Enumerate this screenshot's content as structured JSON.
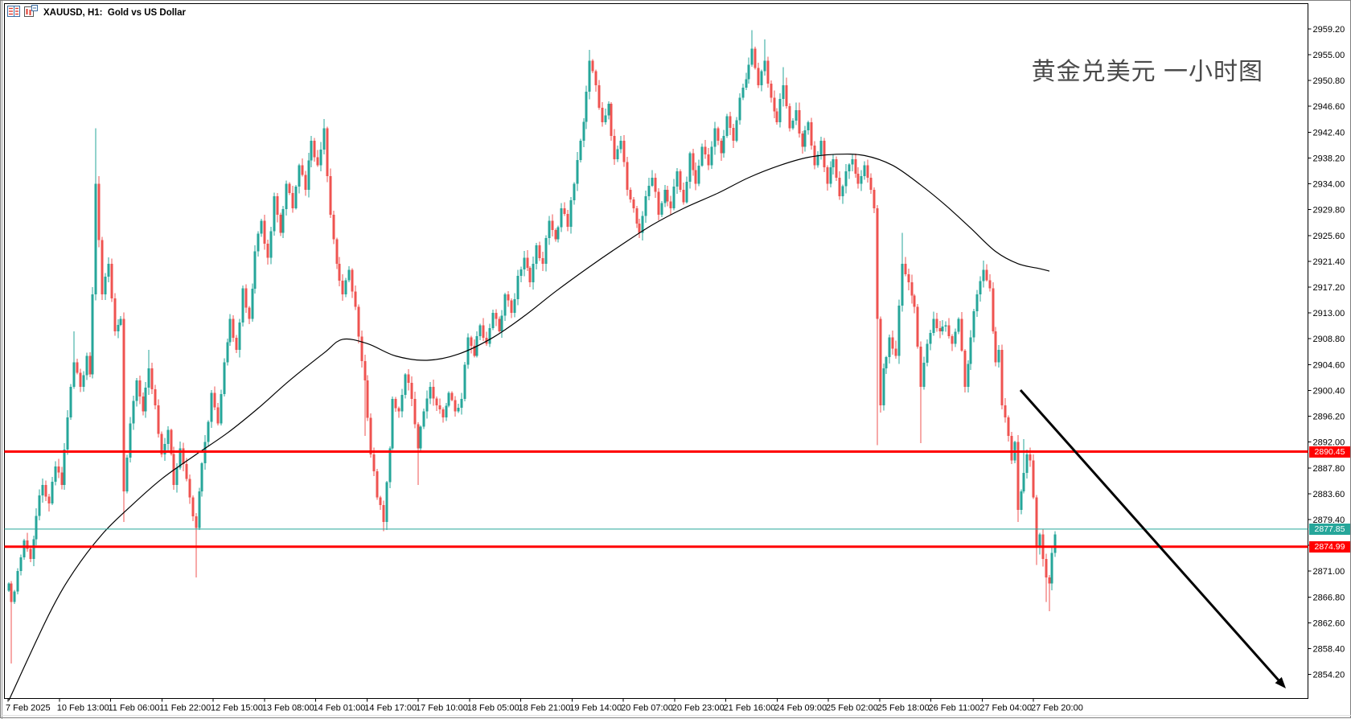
{
  "window": {
    "title": "XAUUSD, H1:  Gold vs US Dollar",
    "icons": [
      "chart-list-icon",
      "chart-template-icon"
    ]
  },
  "annotation": {
    "title": "黄金兑美元 一小时图",
    "color": "#4a4a4a"
  },
  "chart_data": {
    "type": "candlestick",
    "symbol": "XAUUSD",
    "timeframe": "H1",
    "description": "Gold vs US Dollar",
    "grid": false,
    "legend_position": "none",
    "ylim": [
      2850.3,
      2963.3
    ],
    "y_ticks": [
      "2959.20",
      "2955.00",
      "2950.80",
      "2946.60",
      "2942.40",
      "2938.20",
      "2934.00",
      "2929.80",
      "2925.60",
      "2921.40",
      "2917.20",
      "2913.00",
      "2908.80",
      "2904.60",
      "2900.40",
      "2896.20",
      "2892.00",
      "2887.80",
      "2883.60",
      "2879.40",
      "2875.20",
      "2871.00",
      "2866.80",
      "2862.60",
      "2858.40",
      "2854.20"
    ],
    "x_labels": [
      "7 Feb 2025",
      "10 Feb 13:00",
      "11 Feb 06:00",
      "11 Feb 22:00",
      "12 Feb 15:00",
      "13 Feb 08:00",
      "14 Feb 01:00",
      "14 Feb 17:00",
      "17 Feb 10:00",
      "18 Feb 05:00",
      "18 Feb 21:00",
      "19 Feb 14:00",
      "20 Feb 07:00",
      "20 Feb 23:00",
      "21 Feb 16:00",
      "24 Feb 09:00",
      "25 Feb 02:00",
      "25 Feb 18:00",
      "26 Feb 11:00",
      "27 Feb 04:00",
      "27 Feb 20:00"
    ],
    "colors": {
      "up": "#26A69A",
      "down": "#EF5350",
      "ma": "#000000",
      "line_red": "#FF0000",
      "line_teal": "#26A69A",
      "axis": "#000000",
      "text": "#000000"
    },
    "price_lines": [
      {
        "label": "2890.45",
        "value": 2890.45,
        "color": "#FF0000",
        "width": 3
      },
      {
        "label": "2877.85",
        "value": 2877.85,
        "color": "#26A69A",
        "width": 1
      },
      {
        "label": "2874.99",
        "value": 2874.99,
        "color": "#FF0000",
        "width": 3
      }
    ],
    "moving_average": {
      "anchors": [
        [
          0,
          2850
        ],
        [
          13,
          2864
        ],
        [
          21,
          2871
        ],
        [
          30,
          2877
        ],
        [
          39,
          2881.5
        ],
        [
          49,
          2886
        ],
        [
          60,
          2890
        ],
        [
          70,
          2893.5
        ],
        [
          80,
          2897.5
        ],
        [
          90,
          2902
        ],
        [
          101,
          2906.5
        ],
        [
          107,
          2908.7
        ],
        [
          115,
          2908
        ],
        [
          124,
          2906
        ],
        [
          134,
          2905.3
        ],
        [
          144,
          2906.3
        ],
        [
          155,
          2909
        ],
        [
          165,
          2912.5
        ],
        [
          175,
          2916.5
        ],
        [
          186,
          2920.5
        ],
        [
          196,
          2924
        ],
        [
          206,
          2927.3
        ],
        [
          216,
          2930
        ],
        [
          227,
          2932.5
        ],
        [
          237,
          2935
        ],
        [
          247,
          2937
        ],
        [
          256,
          2938.3
        ],
        [
          265,
          2938.8
        ],
        [
          274,
          2938.6
        ],
        [
          283,
          2937
        ],
        [
          292,
          2933.8
        ],
        [
          300,
          2930.5
        ],
        [
          308,
          2926.8
        ],
        [
          316,
          2923
        ],
        [
          323,
          2921
        ],
        [
          330,
          2920.2
        ],
        [
          333,
          2919.8
        ]
      ]
    },
    "candles": {
      "count": 336,
      "close_path": [
        [
          0,
          2869
        ],
        [
          1,
          2866
        ],
        [
          3,
          2871
        ],
        [
          5,
          2876
        ],
        [
          7,
          2873
        ],
        [
          9,
          2880
        ],
        [
          11,
          2885
        ],
        [
          13,
          2882
        ],
        [
          15,
          2888
        ],
        [
          17,
          2885
        ],
        [
          19,
          2896
        ],
        [
          21,
          2905
        ],
        [
          23,
          2901
        ],
        [
          25,
          2906
        ],
        [
          26,
          2903
        ],
        [
          27,
          2916
        ],
        [
          28,
          2934
        ],
        [
          30,
          2916
        ],
        [
          32,
          2921
        ],
        [
          34,
          2910
        ],
        [
          36,
          2912
        ],
        [
          37,
          2884
        ],
        [
          39,
          2895
        ],
        [
          41,
          2902
        ],
        [
          43,
          2897
        ],
        [
          45,
          2904
        ],
        [
          47,
          2898
        ],
        [
          49,
          2890
        ],
        [
          51,
          2894
        ],
        [
          53,
          2885
        ],
        [
          55,
          2891
        ],
        [
          57,
          2886
        ],
        [
          58,
          2883
        ],
        [
          60,
          2878
        ],
        [
          61,
          2884
        ],
        [
          63,
          2892
        ],
        [
          65,
          2900
        ],
        [
          67,
          2895
        ],
        [
          69,
          2905
        ],
        [
          71,
          2912
        ],
        [
          73,
          2907
        ],
        [
          75,
          2917
        ],
        [
          77,
          2912
        ],
        [
          79,
          2923
        ],
        [
          81,
          2928
        ],
        [
          83,
          2922
        ],
        [
          85,
          2932
        ],
        [
          87,
          2926
        ],
        [
          89,
          2934
        ],
        [
          91,
          2930
        ],
        [
          93,
          2937
        ],
        [
          95,
          2933
        ],
        [
          97,
          2941
        ],
        [
          99,
          2937
        ],
        [
          101,
          2943
        ],
        [
          103,
          2929
        ],
        [
          105,
          2921
        ],
        [
          107,
          2916
        ],
        [
          109,
          2920
        ],
        [
          111,
          2914
        ],
        [
          114,
          2902
        ],
        [
          116,
          2890
        ],
        [
          118,
          2883
        ],
        [
          120,
          2879
        ],
        [
          122,
          2891
        ],
        [
          123,
          2899
        ],
        [
          125,
          2897
        ],
        [
          127,
          2903
        ],
        [
          129,
          2899
        ],
        [
          131,
          2891
        ],
        [
          133,
          2897
        ],
        [
          135,
          2901
        ],
        [
          137,
          2898
        ],
        [
          139,
          2896
        ],
        [
          141,
          2900
        ],
        [
          143,
          2897
        ],
        [
          145,
          2899
        ],
        [
          147,
          2909
        ],
        [
          149,
          2906
        ],
        [
          151,
          2911
        ],
        [
          153,
          2908
        ],
        [
          155,
          2913
        ],
        [
          157,
          2910
        ],
        [
          159,
          2916
        ],
        [
          161,
          2913
        ],
        [
          163,
          2919
        ],
        [
          165,
          2922
        ],
        [
          167,
          2918
        ],
        [
          169,
          2924
        ],
        [
          171,
          2921
        ],
        [
          173,
          2928
        ],
        [
          175,
          2925
        ],
        [
          177,
          2930
        ],
        [
          179,
          2927
        ],
        [
          181,
          2934
        ],
        [
          183,
          2941
        ],
        [
          185,
          2949
        ],
        [
          186,
          2954
        ],
        [
          188,
          2950
        ],
        [
          190,
          2944
        ],
        [
          192,
          2947
        ],
        [
          194,
          2938
        ],
        [
          196,
          2941
        ],
        [
          198,
          2933
        ],
        [
          200,
          2930
        ],
        [
          202,
          2926
        ],
        [
          204,
          2932
        ],
        [
          206,
          2935
        ],
        [
          208,
          2929
        ],
        [
          210,
          2933
        ],
        [
          212,
          2930
        ],
        [
          214,
          2936
        ],
        [
          216,
          2931
        ],
        [
          218,
          2939
        ],
        [
          220,
          2934
        ],
        [
          222,
          2940
        ],
        [
          224,
          2937
        ],
        [
          226,
          2943
        ],
        [
          228,
          2939
        ],
        [
          230,
          2945
        ],
        [
          232,
          2941
        ],
        [
          234,
          2948
        ],
        [
          236,
          2951
        ],
        [
          238,
          2956
        ],
        [
          240,
          2950
        ],
        [
          242,
          2954
        ],
        [
          244,
          2948
        ],
        [
          246,
          2944
        ],
        [
          248,
          2950
        ],
        [
          250,
          2943
        ],
        [
          252,
          2946
        ],
        [
          254,
          2940
        ],
        [
          256,
          2944
        ],
        [
          258,
          2937
        ],
        [
          260,
          2941
        ],
        [
          262,
          2934
        ],
        [
          264,
          2938
        ],
        [
          266,
          2932
        ],
        [
          268,
          2936
        ],
        [
          270,
          2938
        ],
        [
          272,
          2934
        ],
        [
          274,
          2937
        ],
        [
          276,
          2933
        ],
        [
          277,
          2930
        ],
        [
          278,
          2912
        ],
        [
          279,
          2898
        ],
        [
          280,
          2904
        ],
        [
          282,
          2909
        ],
        [
          284,
          2906
        ],
        [
          286,
          2921
        ],
        [
          288,
          2918
        ],
        [
          290,
          2914
        ],
        [
          292,
          2901
        ],
        [
          294,
          2908
        ],
        [
          296,
          2912
        ],
        [
          298,
          2910
        ],
        [
          300,
          2911
        ],
        [
          302,
          2908
        ],
        [
          304,
          2912
        ],
        [
          306,
          2901
        ],
        [
          308,
          2909
        ],
        [
          310,
          2916
        ],
        [
          312,
          2920
        ],
        [
          314,
          2917
        ],
        [
          315,
          2910
        ],
        [
          316,
          2905
        ],
        [
          317,
          2907
        ],
        [
          318,
          2898
        ],
        [
          319,
          2896
        ],
        [
          320,
          2893
        ],
        [
          321,
          2889
        ],
        [
          322,
          2892
        ],
        [
          323,
          2881
        ],
        [
          324,
          2884
        ],
        [
          325,
          2887
        ],
        [
          326,
          2890
        ],
        [
          327,
          2889
        ],
        [
          328,
          2883
        ],
        [
          329,
          2875
        ],
        [
          330,
          2877
        ],
        [
          331,
          2873
        ],
        [
          332,
          2870
        ],
        [
          333,
          2869
        ],
        [
          334,
          2874
        ],
        [
          335,
          2877
        ]
      ],
      "wick_overrides": [
        [
          1,
          "low",
          2856
        ],
        [
          21,
          "high",
          2910
        ],
        [
          28,
          "high",
          2943
        ],
        [
          37,
          "low",
          2879
        ],
        [
          45,
          "high",
          2907
        ],
        [
          60,
          "low",
          2870
        ],
        [
          101,
          "high",
          2944.5
        ],
        [
          114,
          "low",
          2893
        ],
        [
          120,
          "low",
          2877.5
        ],
        [
          131,
          "low",
          2885
        ],
        [
          186,
          "high",
          2955.8
        ],
        [
          238,
          "high",
          2959.0
        ],
        [
          242,
          "high",
          2957.5
        ],
        [
          248,
          "high",
          2953
        ],
        [
          278,
          "low",
          2891.5
        ],
        [
          286,
          "high",
          2926
        ],
        [
          292,
          "low",
          2891.8
        ],
        [
          312,
          "high",
          2921.5
        ],
        [
          323,
          "low",
          2879
        ],
        [
          325,
          "high",
          2892.5
        ],
        [
          329,
          "low",
          2872
        ],
        [
          332,
          "low",
          2866
        ],
        [
          333,
          "low",
          2864.5
        ]
      ]
    },
    "trend_arrow": {
      "from": [
        1268,
        484
      ],
      "to": [
        1598,
        855
      ]
    }
  }
}
